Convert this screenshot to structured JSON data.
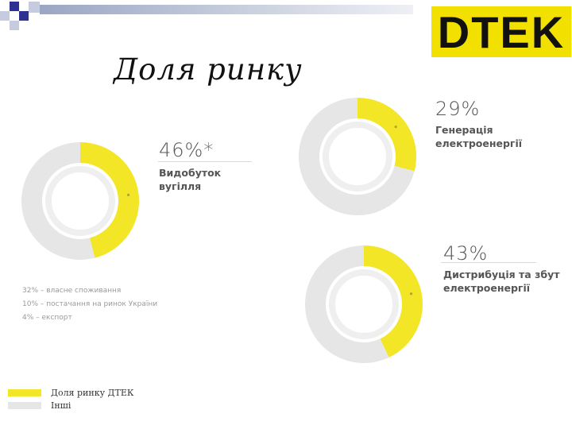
{
  "slide": {
    "title": "Доля ринку",
    "logo_text": "DTEK"
  },
  "colors": {
    "share": "#f2e627",
    "other": "#e6e6e6",
    "accent_squares": "#2e3192",
    "logo": "#f2e100",
    "logo_text": "#111111"
  },
  "chart_data": [
    {
      "type": "pie",
      "style": "donut",
      "label": "Видобуток вугілля",
      "value_label": "46%*",
      "series": [
        {
          "name": "Доля ринку ДТЕК",
          "value": 46
        },
        {
          "name": "Інші",
          "value": 54
        }
      ]
    },
    {
      "type": "pie",
      "style": "donut",
      "label": "Генерація електроенергії",
      "value_label": "29%",
      "series": [
        {
          "name": "Доля ринку ДТЕК",
          "value": 29
        },
        {
          "name": "Інші",
          "value": 71
        }
      ]
    },
    {
      "type": "pie",
      "style": "donut",
      "label": "Дистрибуція та збут електроенергії",
      "value_label": "43%",
      "series": [
        {
          "name": "Доля ринку ДТЕК",
          "value": 43
        },
        {
          "name": "Інші",
          "value": 57
        }
      ]
    }
  ],
  "notes": [
    "32% – власне споживання",
    "10% – постачання на ринок України",
    "4% – експорт"
  ],
  "legend": [
    {
      "label": "Доля ринку ДТЕК",
      "color": "#f2e627"
    },
    {
      "label": "Інші",
      "color": "#e6e6e6"
    }
  ]
}
